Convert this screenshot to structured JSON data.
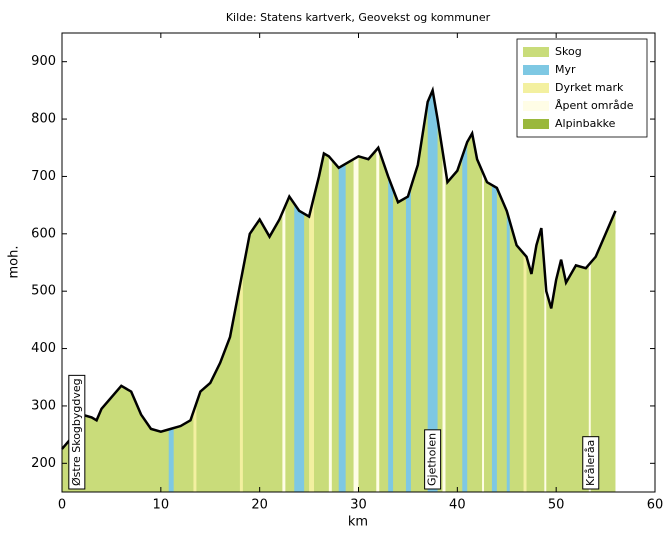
{
  "chart_data": {
    "type": "area",
    "title": "Kilde: Statens kartverk, Geovekst og kommuner",
    "xlabel": "km",
    "ylabel": "moh.",
    "x": [
      0,
      1,
      2,
      3,
      3.5,
      4,
      5,
      6,
      7,
      8,
      9,
      10,
      11,
      12,
      13,
      14,
      15,
      16,
      17,
      18,
      19,
      20,
      21,
      22,
      23,
      24,
      25,
      26,
      26.5,
      27,
      28,
      29,
      30,
      31,
      32,
      33,
      34,
      35,
      36,
      37,
      37.5,
      38,
      39,
      40,
      41,
      41.5,
      42,
      43,
      44,
      45,
      46,
      47,
      47.5,
      48,
      48.5,
      49,
      49.5,
      50,
      50.5,
      51,
      52,
      53,
      54,
      55,
      56
    ],
    "values": [
      225,
      245,
      285,
      280,
      275,
      295,
      315,
      335,
      325,
      285,
      260,
      255,
      260,
      265,
      275,
      325,
      340,
      375,
      420,
      510,
      600,
      625,
      595,
      625,
      665,
      640,
      630,
      700,
      740,
      735,
      715,
      725,
      735,
      730,
      750,
      700,
      655,
      665,
      720,
      830,
      850,
      800,
      690,
      710,
      760,
      775,
      730,
      690,
      680,
      640,
      580,
      560,
      530,
      580,
      610,
      500,
      470,
      520,
      555,
      515,
      545,
      540,
      560,
      600,
      640
    ],
    "color": "#000000",
    "xlim": [
      0,
      60
    ],
    "ylim": [
      150,
      950
    ],
    "xticks": [
      0,
      10,
      20,
      30,
      40,
      50,
      60
    ],
    "yticks": [
      200,
      300,
      400,
      500,
      600,
      700,
      800,
      900
    ],
    "legend_position": "upper right",
    "land_cover": [
      {
        "name": "Skog",
        "color": "#c9dc7a",
        "ranges": []
      },
      {
        "name": "Myr",
        "color": "#7ec8e3",
        "ranges": [
          [
            10.8,
            11.3
          ],
          [
            23.5,
            24.5
          ],
          [
            28,
            28.7
          ],
          [
            33,
            33.5
          ],
          [
            34.8,
            35.3
          ],
          [
            37,
            38
          ],
          [
            40.5,
            41
          ],
          [
            43.5,
            44
          ],
          [
            45,
            45.3
          ]
        ]
      },
      {
        "name": "Dyrket mark",
        "color": "#f3f0a0",
        "ranges": [
          [
            13.3,
            13.6
          ],
          [
            18,
            18.3
          ],
          [
            25,
            25.5
          ],
          [
            46.7,
            47
          ]
        ]
      },
      {
        "name": "Åpent område",
        "color": "#fffde6",
        "ranges": [
          [
            22.3,
            22.6
          ],
          [
            27,
            27.3
          ],
          [
            29.5,
            30
          ],
          [
            31.8,
            32.1
          ],
          [
            38.5,
            38.8
          ],
          [
            42.5,
            42.7
          ],
          [
            48.8,
            49
          ],
          [
            53.3,
            53.5
          ]
        ]
      },
      {
        "name": "Alpinbakke",
        "color": "#9ab83c",
        "ranges": []
      }
    ],
    "annotations": [
      {
        "text": "Østre Skogbygdveg",
        "x": 1.5
      },
      {
        "text": "Gjetholen",
        "x": 37.5
      },
      {
        "text": "Kråleråa",
        "x": 53.5
      }
    ]
  }
}
